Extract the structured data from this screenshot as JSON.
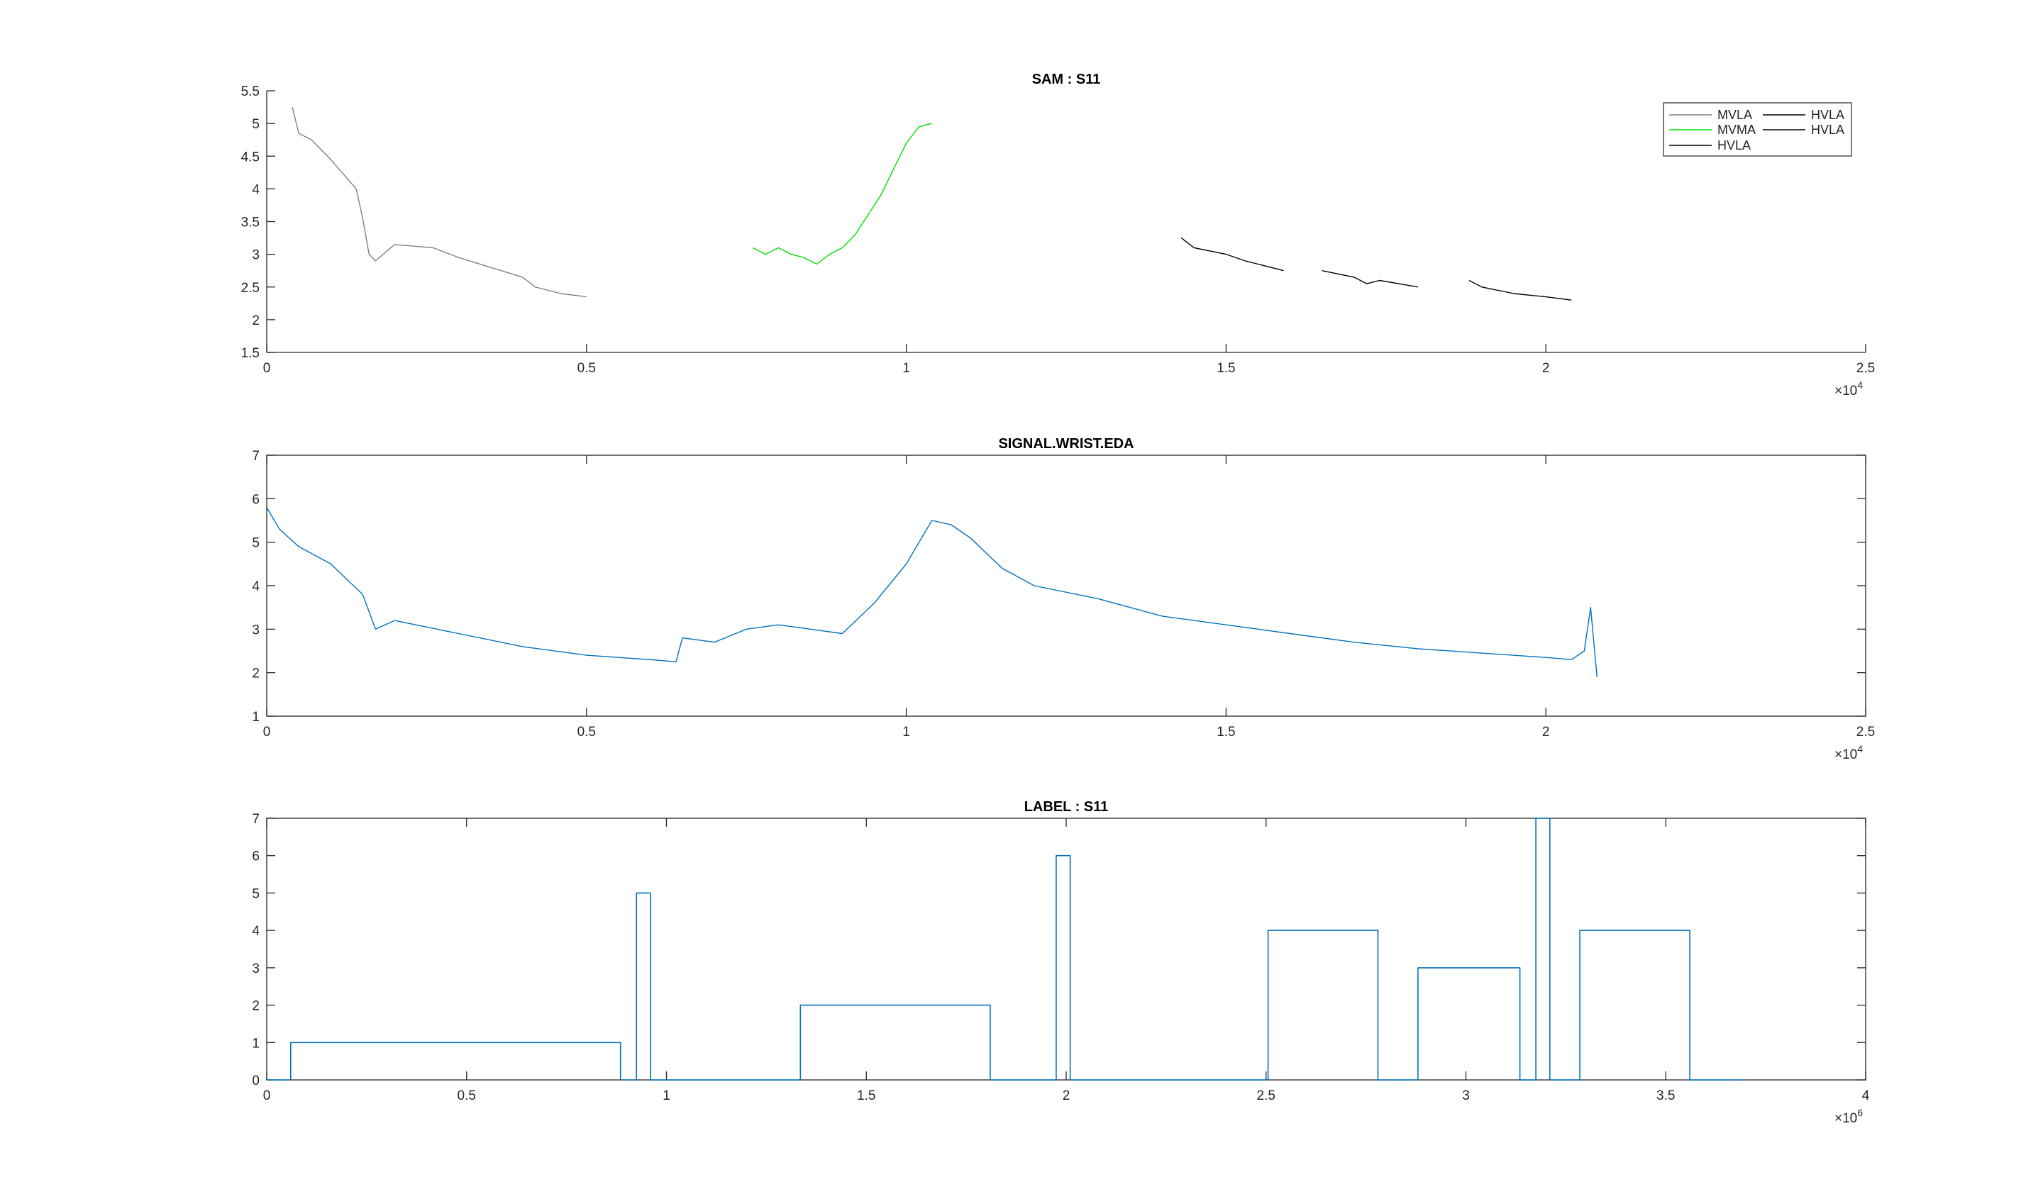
{
  "chart_data": [
    {
      "type": "line",
      "title": "SAM : S11",
      "xlim": [
        0,
        2.5
      ],
      "ylim": [
        1.5,
        5.5
      ],
      "x_ticks": [
        "0",
        "0.5",
        "1",
        "1.5",
        "2",
        "2.5"
      ],
      "y_ticks": [
        "1.5",
        "2",
        "2.5",
        "3",
        "3.5",
        "4",
        "4.5",
        "5",
        "5.5"
      ],
      "x_exponent": {
        "base": "×10",
        "power": "4"
      },
      "legend": {
        "placement": "top-right",
        "entries": [
          {
            "name": "MVLA",
            "color": "#808080"
          },
          {
            "name": "MVMA",
            "color": "#00e000"
          },
          {
            "name": "HVLA",
            "color": "#000000"
          },
          {
            "name": "HVLA",
            "color": "#000000"
          },
          {
            "name": "HVLA",
            "color": "#000000"
          }
        ]
      },
      "series": [
        {
          "name": "MVLA",
          "color": "#808080",
          "x": [
            0.04,
            0.05,
            0.07,
            0.1,
            0.14,
            0.15,
            0.16,
            0.17,
            0.2,
            0.26,
            0.3,
            0.35,
            0.4,
            0.42,
            0.46,
            0.5
          ],
          "y": [
            5.25,
            4.85,
            4.75,
            4.45,
            4.0,
            3.55,
            3.0,
            2.9,
            3.15,
            3.1,
            2.95,
            2.8,
            2.65,
            2.5,
            2.4,
            2.35
          ]
        },
        {
          "name": "MVMA",
          "color": "#00e000",
          "x": [
            0.76,
            0.78,
            0.8,
            0.82,
            0.84,
            0.86,
            0.88,
            0.9,
            0.92,
            0.94,
            0.96,
            0.98,
            1.0,
            1.02,
            1.04
          ],
          "y": [
            3.1,
            3.0,
            3.1,
            3.0,
            2.95,
            2.85,
            3.0,
            3.1,
            3.3,
            3.6,
            3.9,
            4.3,
            4.7,
            4.95,
            5.0
          ]
        },
        {
          "name": "HVLA",
          "color": "#000000",
          "x": [
            1.43,
            1.45,
            1.5,
            1.53,
            1.55,
            1.59
          ],
          "y": [
            3.25,
            3.1,
            3.0,
            2.9,
            2.85,
            2.75
          ]
        },
        {
          "name": "HVLA",
          "color": "#000000",
          "x": [
            1.65,
            1.7,
            1.72,
            1.74,
            1.77,
            1.8
          ],
          "y": [
            2.75,
            2.65,
            2.55,
            2.6,
            2.55,
            2.5
          ]
        },
        {
          "name": "HVLA",
          "color": "#000000",
          "x": [
            1.88,
            1.9,
            1.95,
            2.0,
            2.04
          ],
          "y": [
            2.6,
            2.5,
            2.4,
            2.35,
            2.3
          ]
        }
      ]
    },
    {
      "type": "line",
      "title": "SIGNAL.WRIST.EDA",
      "xlim": [
        0,
        2.5
      ],
      "ylim": [
        1,
        7
      ],
      "x_ticks": [
        "0",
        "0.5",
        "1",
        "1.5",
        "2",
        "2.5"
      ],
      "y_ticks": [
        "1",
        "2",
        "3",
        "4",
        "5",
        "6",
        "7"
      ],
      "x_exponent": {
        "base": "×10",
        "power": "4"
      },
      "series": [
        {
          "color": "#0072bd",
          "x": [
            0.0,
            0.02,
            0.05,
            0.1,
            0.15,
            0.17,
            0.2,
            0.3,
            0.4,
            0.5,
            0.6,
            0.64,
            0.65,
            0.7,
            0.75,
            0.8,
            0.85,
            0.9,
            0.95,
            1.0,
            1.04,
            1.07,
            1.1,
            1.15,
            1.2,
            1.3,
            1.4,
            1.5,
            1.6,
            1.7,
            1.8,
            1.9,
            2.0,
            2.04,
            2.06,
            2.07,
            2.08
          ],
          "y": [
            5.8,
            5.3,
            4.9,
            4.5,
            3.8,
            3.0,
            3.2,
            2.9,
            2.6,
            2.4,
            2.3,
            2.25,
            2.8,
            2.7,
            3.0,
            3.1,
            3.0,
            2.9,
            3.6,
            4.5,
            5.5,
            5.4,
            5.1,
            4.4,
            4.0,
            3.7,
            3.3,
            3.1,
            2.9,
            2.7,
            2.55,
            2.45,
            2.35,
            2.3,
            2.5,
            3.5,
            1.9
          ]
        }
      ]
    },
    {
      "type": "line",
      "title": "LABEL : S11",
      "xlim": [
        0,
        4
      ],
      "ylim": [
        0,
        7
      ],
      "x_ticks": [
        "0",
        "0.5",
        "1",
        "1.5",
        "2",
        "2.5",
        "3",
        "3.5",
        "4"
      ],
      "y_ticks": [
        "0",
        "1",
        "2",
        "3",
        "4",
        "5",
        "6",
        "7"
      ],
      "x_exponent": {
        "base": "×10",
        "power": "6"
      },
      "series": [
        {
          "color": "#0072bd",
          "step": true,
          "x": [
            0,
            0.06,
            0.06,
            0.885,
            0.885,
            0.925,
            0.925,
            0.96,
            0.96,
            1.335,
            1.335,
            1.81,
            1.81,
            1.975,
            1.975,
            2.01,
            2.01,
            2.505,
            2.505,
            2.78,
            2.78,
            2.88,
            2.88,
            3.135,
            3.135,
            3.175,
            3.175,
            3.21,
            3.21,
            3.285,
            3.285,
            3.56,
            3.56,
            3.69
          ],
          "y": [
            0,
            0,
            1,
            1,
            0,
            0,
            5,
            5,
            0,
            0,
            2,
            2,
            0,
            0,
            6,
            6,
            0,
            0,
            4,
            4,
            0,
            0,
            3,
            3,
            0,
            0,
            7,
            7,
            0,
            0,
            4,
            4,
            0,
            0
          ]
        }
      ]
    }
  ]
}
